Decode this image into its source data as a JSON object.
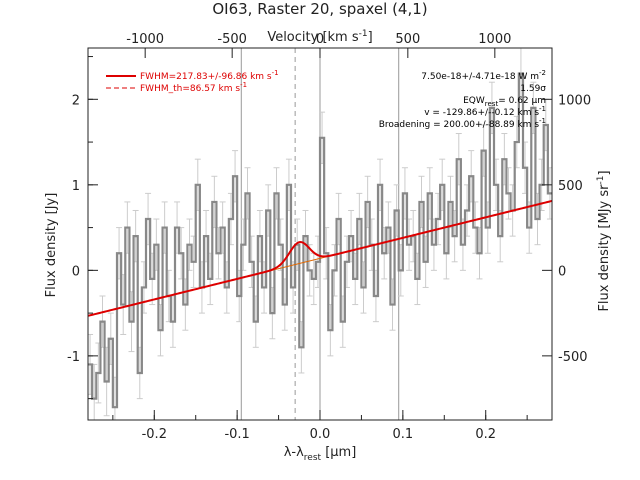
{
  "chart_data": {
    "type": "line",
    "title": "OI63, Raster 20, spaxel (4,1)",
    "xlabel": "λ-λ",
    "xlabel_sub": "rest",
    "xlabel_unit": " [μm]",
    "ylabel": "Flux density [Jy]",
    "x2label": "Velocity [km s",
    "x2label_sup": "-1",
    "x2label_end": "]",
    "y2label": "Flux density [MJy sr",
    "y2label_sup": "-1",
    "y2label_end": "]",
    "xlim": [
      -0.28,
      0.28
    ],
    "ylim": [
      -1.75,
      2.6
    ],
    "x_ticks": [
      "-0.2",
      "-0.1",
      "0.0",
      "0.1",
      "0.2"
    ],
    "x_tick_values": [
      -0.2,
      -0.1,
      0.0,
      0.1,
      0.2
    ],
    "y_ticks": [
      "-1",
      "0",
      "1",
      "2"
    ],
    "y_tick_values": [
      -1,
      0,
      1,
      2
    ],
    "x2_ticks": [
      "-1000",
      "-500",
      "0",
      "500",
      "1000"
    ],
    "x2_tick_values": [
      -1000,
      -500,
      0,
      500,
      1000
    ],
    "x2_tick_xpos": [
      -0.211,
      -0.106,
      0.0,
      0.106,
      0.211
    ],
    "y2_ticks": [
      "-500",
      "0",
      "500",
      "1000"
    ],
    "y2_tick_values": [
      -500,
      0,
      500,
      1000
    ],
    "y2_tick_ypos": [
      -1.0,
      0.0,
      1.0,
      2.0
    ],
    "vertical_lines": [
      {
        "x": -0.095,
        "style": "solid",
        "color": "#999999"
      },
      {
        "x": -0.03,
        "style": "dashed",
        "color": "#999999"
      },
      {
        "x": 0.0,
        "style": "solid",
        "color": "#999999"
      },
      {
        "x": 0.095,
        "style": "solid",
        "color": "#999999"
      }
    ],
    "spectrum": {
      "name": "data",
      "color": "#888888",
      "x": [
        -0.28,
        -0.275,
        -0.27,
        -0.265,
        -0.26,
        -0.255,
        -0.25,
        -0.245,
        -0.24,
        -0.235,
        -0.23,
        -0.225,
        -0.22,
        -0.215,
        -0.21,
        -0.205,
        -0.2,
        -0.195,
        -0.19,
        -0.185,
        -0.18,
        -0.175,
        -0.17,
        -0.165,
        -0.16,
        -0.155,
        -0.15,
        -0.145,
        -0.14,
        -0.135,
        -0.13,
        -0.125,
        -0.12,
        -0.115,
        -0.11,
        -0.105,
        -0.1,
        -0.095,
        -0.09,
        -0.085,
        -0.08,
        -0.075,
        -0.07,
        -0.065,
        -0.06,
        -0.055,
        -0.05,
        -0.045,
        -0.04,
        -0.035,
        -0.03,
        -0.025,
        -0.02,
        -0.015,
        -0.01,
        -0.005,
        0.0,
        0.005,
        0.01,
        0.015,
        0.02,
        0.025,
        0.03,
        0.035,
        0.04,
        0.045,
        0.05,
        0.055,
        0.06,
        0.065,
        0.07,
        0.075,
        0.08,
        0.085,
        0.09,
        0.095,
        0.1,
        0.105,
        0.11,
        0.115,
        0.12,
        0.125,
        0.13,
        0.135,
        0.14,
        0.145,
        0.15,
        0.155,
        0.16,
        0.165,
        0.17,
        0.175,
        0.18,
        0.185,
        0.19,
        0.195,
        0.2,
        0.205,
        0.21,
        0.215,
        0.22,
        0.225,
        0.23,
        0.235,
        0.24,
        0.245,
        0.25,
        0.255,
        0.26,
        0.265,
        0.27,
        0.275
      ],
      "y": [
        -1.1,
        -1.5,
        -1.2,
        -0.6,
        -1.3,
        -0.8,
        -1.6,
        0.2,
        -0.4,
        0.5,
        -0.6,
        0.4,
        -1.2,
        -0.2,
        0.6,
        -0.1,
        0.3,
        -0.7,
        0.5,
        -0.3,
        -0.6,
        0.5,
        0.2,
        -0.4,
        0.3,
        0.1,
        1.0,
        -0.2,
        0.4,
        -0.1,
        0.8,
        0.2,
        0.5,
        -0.2,
        0.6,
        1.1,
        -0.3,
        0.3,
        0.9,
        0.1,
        -0.6,
        0.4,
        -0.2,
        0.7,
        -0.5,
        0.9,
        0.3,
        -0.4,
        1.0,
        -0.2,
        0.3,
        -0.9,
        0.4,
        0.0,
        -0.1,
        0.1,
        1.55,
        0.2,
        -0.7,
        0.0,
        0.6,
        -0.6,
        0.1,
        0.4,
        -0.1,
        0.6,
        -0.2,
        0.8,
        0.3,
        -0.3,
        1.0,
        0.2,
        0.5,
        -0.4,
        0.7,
        0.0,
        0.9,
        0.3,
        0.4,
        -0.1,
        0.8,
        0.1,
        0.9,
        0.3,
        0.6,
        1.0,
        0.2,
        0.8,
        0.4,
        1.3,
        0.3,
        0.7,
        1.1,
        0.5,
        0.2,
        1.4,
        0.5,
        1.9,
        1.0,
        0.4,
        1.3,
        0.9,
        0.7,
        1.5,
        2.3,
        1.2,
        0.5,
        1.9,
        0.6,
        1.0,
        1.7,
        0.9
      ],
      "errors": [
        0.35,
        0.4,
        0.35,
        0.3,
        0.4,
        0.3,
        0.35,
        0.3,
        0.35,
        0.3,
        0.35,
        0.3,
        0.3,
        0.3,
        0.3,
        0.3,
        0.3,
        0.3,
        0.3,
        0.3,
        0.3,
        0.3,
        0.3,
        0.3,
        0.3,
        0.3,
        0.3,
        0.3,
        0.3,
        0.3,
        0.3,
        0.3,
        0.3,
        0.3,
        0.3,
        0.3,
        0.3,
        0.3,
        0.3,
        0.3,
        0.3,
        0.3,
        0.3,
        0.3,
        0.3,
        0.3,
        0.3,
        0.3,
        0.3,
        0.3,
        0.3,
        0.3,
        0.3,
        0.3,
        0.3,
        0.3,
        0.3,
        0.3,
        0.3,
        0.3,
        0.3,
        0.3,
        0.3,
        0.3,
        0.3,
        0.3,
        0.3,
        0.3,
        0.3,
        0.3,
        0.3,
        0.3,
        0.3,
        0.3,
        0.3,
        0.3,
        0.3,
        0.3,
        0.3,
        0.3,
        0.3,
        0.3,
        0.3,
        0.3,
        0.3,
        0.3,
        0.3,
        0.3,
        0.3,
        0.3,
        0.3,
        0.3,
        0.3,
        0.3,
        0.3,
        0.3,
        0.3,
        0.3,
        0.3,
        0.3,
        0.3,
        0.3,
        0.3,
        0.3,
        0.3,
        0.3,
        0.3,
        0.3,
        0.3,
        0.3,
        0.3,
        0.3
      ]
    },
    "continuum": {
      "name": "continuum",
      "color": "#dd6600",
      "intercept": 0.14,
      "slope": 2.4
    },
    "gaussian": {
      "name": "fit",
      "color": "#dd0000",
      "center": -0.025,
      "amplitude": 0.25,
      "sigma": 0.012
    },
    "legend": [
      {
        "label": "FWHM=217.83+/-96.86 km s",
        "sup": "-1",
        "style": "solid",
        "color": "#dd0000"
      },
      {
        "label": "FWHM_th=86.57 km s",
        "sup": "-1",
        "style": "dashed",
        "color": "#dd0000"
      }
    ],
    "annotations": [
      {
        "text": "7.50e-18+/-4.71e-18 W m",
        "sup": "-2"
      },
      {
        "text": "1.59σ"
      },
      {
        "text": "EQW",
        "sub": "rest",
        "rest": "= 0.62 μm"
      },
      {
        "text": "v = -129.86+/--0.12 km s",
        "sup": "-1"
      },
      {
        "text": "Broadening = 200.00+/-88.89 km s",
        "sup": "-1"
      }
    ]
  }
}
